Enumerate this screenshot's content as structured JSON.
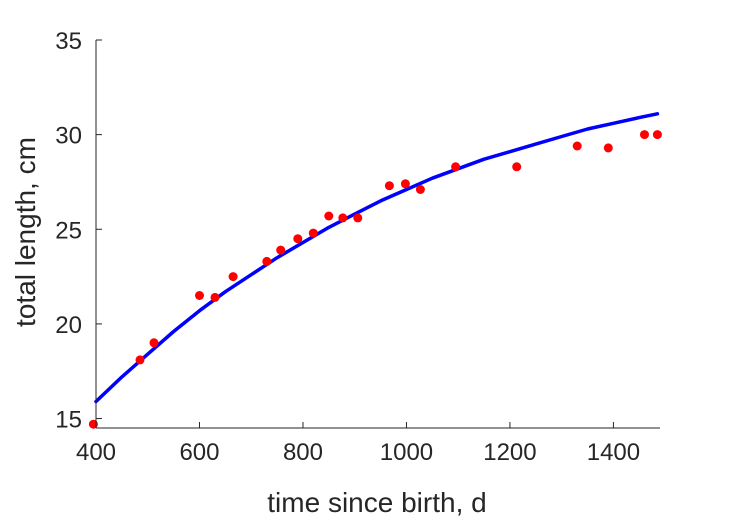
{
  "chart_data": {
    "type": "scatter",
    "title": "",
    "xlabel": "time since birth, d",
    "ylabel": "total length, cm",
    "xlim": [
      400,
      1490
    ],
    "ylim": [
      14.5,
      35
    ],
    "xticks": [
      400,
      600,
      800,
      1000,
      1200,
      1400
    ],
    "yticks": [
      15,
      20,
      25,
      30,
      35
    ],
    "grid": false,
    "series": [
      {
        "kind": "points",
        "color": "#ff0000",
        "points": [
          [
            395,
            14.7
          ],
          [
            485,
            18.1
          ],
          [
            512,
            19.0
          ],
          [
            600,
            21.5
          ],
          [
            630,
            21.4
          ],
          [
            665,
            22.5
          ],
          [
            730,
            23.3
          ],
          [
            757,
            23.9
          ],
          [
            790,
            24.5
          ],
          [
            820,
            24.8
          ],
          [
            850,
            25.7
          ],
          [
            877,
            25.6
          ],
          [
            906,
            25.6
          ],
          [
            967,
            27.3
          ],
          [
            998,
            27.4
          ],
          [
            1027,
            27.1
          ],
          [
            1095,
            28.3
          ],
          [
            1213,
            28.3
          ],
          [
            1330,
            29.4
          ],
          [
            1390,
            29.3
          ],
          [
            1460,
            30.0
          ],
          [
            1485,
            30.0
          ]
        ]
      },
      {
        "kind": "line",
        "color": "#0000ff",
        "points": [
          [
            400,
            15.9
          ],
          [
            450,
            17.2
          ],
          [
            500,
            18.4
          ],
          [
            550,
            19.6
          ],
          [
            600,
            20.7
          ],
          [
            650,
            21.7
          ],
          [
            700,
            22.6
          ],
          [
            750,
            23.5
          ],
          [
            800,
            24.3
          ],
          [
            850,
            25.1
          ],
          [
            900,
            25.8
          ],
          [
            950,
            26.5
          ],
          [
            1000,
            27.1
          ],
          [
            1050,
            27.7
          ],
          [
            1100,
            28.2
          ],
          [
            1150,
            28.7
          ],
          [
            1200,
            29.1
          ],
          [
            1250,
            29.5
          ],
          [
            1300,
            29.9
          ],
          [
            1350,
            30.3
          ],
          [
            1400,
            30.6
          ],
          [
            1450,
            30.9
          ],
          [
            1485,
            31.1
          ]
        ]
      }
    ]
  }
}
